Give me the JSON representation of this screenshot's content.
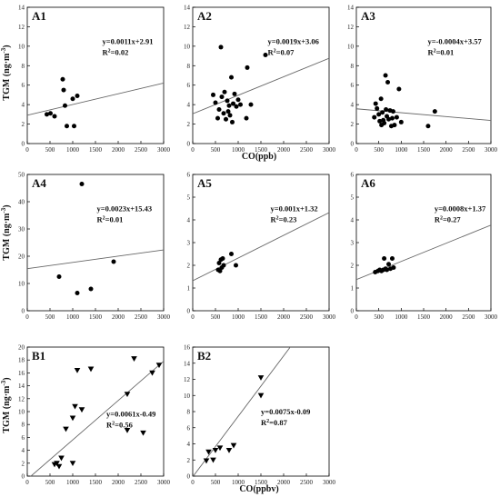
{
  "figure": {
    "ylabel_main": "TGM (ng·m",
    "ylabel_sup": "-3",
    "ylabel_close": ")",
    "xlabel_row1": "CO(ppb)",
    "xlabel_row3": "CO(ppbv)"
  },
  "chart_data": [
    {
      "type": "scatter",
      "label": "A1",
      "marker": "circle",
      "xlim": [
        0,
        3000
      ],
      "ylim": [
        0,
        14
      ],
      "xticks": [
        "0",
        "500",
        "1000",
        "1500",
        "2000",
        "2500",
        "3000"
      ],
      "yticks": [
        "0",
        "2",
        "4",
        "6",
        "8",
        "10",
        "12",
        "14"
      ],
      "equation": "y=0.0011x+2.91",
      "r2_prefix": "R",
      "r2_sup": "2",
      "r2_value": "=0.02",
      "fit": {
        "slope": 0.0011,
        "intercept": 2.91
      },
      "points": [
        [
          430,
          3.0
        ],
        [
          510,
          3.1
        ],
        [
          600,
          2.8
        ],
        [
          780,
          6.6
        ],
        [
          800,
          5.5
        ],
        [
          830,
          3.9
        ],
        [
          870,
          1.8
        ],
        [
          1000,
          4.6
        ],
        [
          1030,
          1.8
        ],
        [
          1100,
          4.9
        ]
      ]
    },
    {
      "type": "scatter",
      "label": "A2",
      "marker": "circle",
      "xlim": [
        0,
        3000
      ],
      "ylim": [
        0,
        14
      ],
      "xticks": [
        "0",
        "500",
        "1000",
        "1500",
        "2000",
        "2500",
        "3000"
      ],
      "yticks": [
        "0",
        "2",
        "4",
        "6",
        "8",
        "10",
        "12",
        "14"
      ],
      "equation": "y=0.0019x+3.06",
      "r2_prefix": "R",
      "r2_sup": "2",
      "r2_value": "=0.07",
      "fit": {
        "slope": 0.0019,
        "intercept": 3.06
      },
      "points": [
        [
          450,
          5.0
        ],
        [
          500,
          4.2
        ],
        [
          550,
          2.6
        ],
        [
          580,
          3.5
        ],
        [
          620,
          9.9
        ],
        [
          640,
          4.8
        ],
        [
          680,
          3.1
        ],
        [
          700,
          5.3
        ],
        [
          730,
          2.5
        ],
        [
          760,
          4.4
        ],
        [
          780,
          3.3
        ],
        [
          800,
          3.9
        ],
        [
          820,
          2.9
        ],
        [
          850,
          6.8
        ],
        [
          870,
          2.2
        ],
        [
          890,
          4.1
        ],
        [
          920,
          5.1
        ],
        [
          960,
          3.8
        ],
        [
          1000,
          4.5
        ],
        [
          1050,
          4.0
        ],
        [
          1180,
          2.6
        ],
        [
          1200,
          7.8
        ],
        [
          1280,
          4.0
        ],
        [
          1600,
          9.1
        ]
      ]
    },
    {
      "type": "scatter",
      "label": "A3",
      "marker": "circle",
      "xlim": [
        0,
        3000
      ],
      "ylim": [
        0,
        14
      ],
      "xticks": [
        "0",
        "500",
        "1000",
        "1500",
        "2000",
        "2500",
        "3000"
      ],
      "yticks": [
        "0",
        "2",
        "4",
        "6",
        "8",
        "10",
        "12",
        "14"
      ],
      "equation": "y=-0.0004x+3.57",
      "r2_prefix": "R",
      "r2_sup": "2",
      "r2_value": "=0.01",
      "fit": {
        "slope": -0.0004,
        "intercept": 3.57
      },
      "points": [
        [
          400,
          2.7
        ],
        [
          430,
          4.1
        ],
        [
          460,
          3.6
        ],
        [
          500,
          3.0
        ],
        [
          520,
          2.3
        ],
        [
          550,
          4.6
        ],
        [
          560,
          1.9
        ],
        [
          580,
          3.2
        ],
        [
          600,
          2.4
        ],
        [
          620,
          2.1
        ],
        [
          650,
          7.0
        ],
        [
          660,
          3.5
        ],
        [
          680,
          2.8
        ],
        [
          700,
          6.3
        ],
        [
          720,
          2.5
        ],
        [
          750,
          3.4
        ],
        [
          780,
          1.8
        ],
        [
          800,
          2.6
        ],
        [
          820,
          3.3
        ],
        [
          850,
          1.9
        ],
        [
          900,
          2.7
        ],
        [
          950,
          5.6
        ],
        [
          1000,
          2.2
        ],
        [
          1600,
          1.8
        ],
        [
          1750,
          3.3
        ]
      ]
    },
    {
      "type": "scatter",
      "label": "A4",
      "marker": "circle",
      "xlim": [
        0,
        3000
      ],
      "ylim": [
        0,
        50
      ],
      "xticks": [
        "0",
        "500",
        "1000",
        "1500",
        "2000",
        "2500",
        "3000"
      ],
      "yticks": [
        "0",
        "10",
        "20",
        "30",
        "40",
        "50"
      ],
      "equation": "y=0.0023x+15.43",
      "r2_prefix": "R",
      "r2_sup": "2",
      "r2_value": "=0.01",
      "fit": {
        "slope": 0.0023,
        "intercept": 15.43
      },
      "points": [
        [
          700,
          12.5
        ],
        [
          1100,
          6.5
        ],
        [
          1200,
          46.5
        ],
        [
          1400,
          8.0
        ],
        [
          1900,
          18.0
        ]
      ]
    },
    {
      "type": "scatter",
      "label": "A5",
      "marker": "circle",
      "xlim": [
        0,
        3000
      ],
      "ylim": [
        0,
        6
      ],
      "xticks": [
        "0",
        "500",
        "1000",
        "1500",
        "2000",
        "2500",
        "3000"
      ],
      "yticks": [
        "0",
        "1",
        "2",
        "3",
        "4",
        "5",
        "6"
      ],
      "equation": "y=0.001x+1.32",
      "r2_prefix": "R",
      "r2_sup": "2",
      "r2_value": "=0.23",
      "fit": {
        "slope": 0.001,
        "intercept": 1.32
      },
      "points": [
        [
          560,
          1.8
        ],
        [
          580,
          2.1
        ],
        [
          600,
          1.75
        ],
        [
          620,
          2.25
        ],
        [
          640,
          1.9
        ],
        [
          660,
          2.3
        ],
        [
          680,
          2.0
        ],
        [
          850,
          2.5
        ],
        [
          950,
          2.0
        ]
      ]
    },
    {
      "type": "scatter",
      "label": "A6",
      "marker": "circle",
      "xlim": [
        0,
        3000
      ],
      "ylim": [
        0,
        6
      ],
      "xticks": [
        "0",
        "500",
        "1000",
        "1500",
        "2000",
        "2500",
        "3000"
      ],
      "yticks": [
        "0",
        "1",
        "2",
        "3",
        "4",
        "5",
        "6"
      ],
      "equation": "y=0.0008x+1.37",
      "r2_prefix": "R",
      "r2_sup": "2",
      "r2_value": "=0.27",
      "fit": {
        "slope": 0.0008,
        "intercept": 1.37
      },
      "points": [
        [
          420,
          1.7
        ],
        [
          480,
          1.75
        ],
        [
          520,
          1.8
        ],
        [
          560,
          1.75
        ],
        [
          600,
          1.8
        ],
        [
          620,
          2.3
        ],
        [
          650,
          1.85
        ],
        [
          680,
          1.8
        ],
        [
          720,
          2.05
        ],
        [
          760,
          1.85
        ],
        [
          800,
          2.3
        ],
        [
          830,
          1.9
        ]
      ]
    },
    {
      "type": "scatter",
      "label": "B1",
      "marker": "triangle-down",
      "xlim": [
        0,
        3000
      ],
      "ylim": [
        0,
        20
      ],
      "xticks": [
        "0",
        "500",
        "1000",
        "1500",
        "2000",
        "2500",
        "3000"
      ],
      "yticks": [
        "0",
        "2",
        "4",
        "6",
        "8",
        "10",
        "12",
        "14",
        "16",
        "18",
        "20"
      ],
      "equation": "y=0.0061x-0.49",
      "r2_prefix": "R",
      "r2_sup": "2",
      "r2_value": "=0.56",
      "fit": {
        "slope": 0.0061,
        "intercept": -0.49
      },
      "points": [
        [
          600,
          1.8
        ],
        [
          650,
          2.0
        ],
        [
          700,
          1.5
        ],
        [
          750,
          2.8
        ],
        [
          850,
          7.3
        ],
        [
          1000,
          2.0
        ],
        [
          1000,
          9.0
        ],
        [
          1050,
          10.8
        ],
        [
          1100,
          16.4
        ],
        [
          1200,
          10.3
        ],
        [
          1400,
          16.6
        ],
        [
          2200,
          12.7
        ],
        [
          2200,
          7.1
        ],
        [
          2350,
          18.2
        ],
        [
          2550,
          6.7
        ],
        [
          2750,
          16.0
        ],
        [
          2900,
          17.2
        ]
      ]
    },
    {
      "type": "scatter",
      "label": "B2",
      "marker": "triangle-down",
      "xlim": [
        0,
        3000
      ],
      "ylim": [
        0,
        16
      ],
      "xticks": [
        "0",
        "500",
        "1000",
        "1500",
        "2000",
        "2500",
        "3000"
      ],
      "yticks": [
        "0",
        "2",
        "4",
        "6",
        "8",
        "10",
        "12",
        "14",
        "16"
      ],
      "equation": "y=0.0075x-0.09",
      "r2_prefix": "R",
      "r2_sup": "2",
      "r2_value": "=0.87",
      "fit": {
        "slope": 0.0075,
        "intercept": -0.09
      },
      "points": [
        [
          300,
          1.9
        ],
        [
          350,
          3.0
        ],
        [
          450,
          2.0
        ],
        [
          500,
          3.2
        ],
        [
          600,
          3.5
        ],
        [
          800,
          3.2
        ],
        [
          900,
          3.8
        ],
        [
          1500,
          10.0
        ],
        [
          1500,
          12.2
        ]
      ]
    }
  ]
}
